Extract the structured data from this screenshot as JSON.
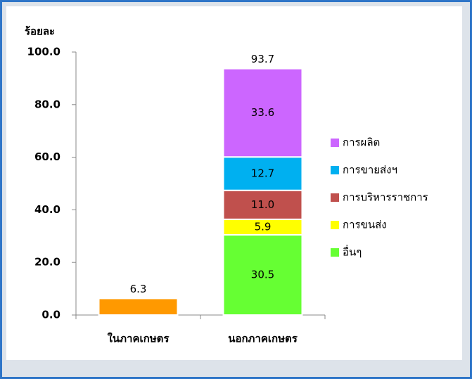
{
  "chart_data": {
    "type": "stacked_bar",
    "y_label": "ร้อยละ",
    "categories": [
      "ในภาคเกษตร",
      "นอกภาคเกษตร"
    ],
    "series": [
      {
        "color": "#ff9900",
        "values": [
          6.3,
          null
        ]
      },
      {
        "name": "อื่นๆ",
        "color": "#66ff33",
        "values": [
          null,
          30.5
        ]
      },
      {
        "name": "การขนส่ง",
        "color": "#ffff00",
        "values": [
          null,
          5.9
        ]
      },
      {
        "name": "การบริหารราชการ",
        "color": "#c0504d",
        "values": [
          null,
          11.0
        ],
        "value_labels": [
          null,
          "11.0"
        ]
      },
      {
        "name": "การขายส่งฯ",
        "color": "#00b0f0",
        "values": [
          null,
          12.7
        ]
      },
      {
        "name": "การผลิต",
        "color": "#cc66ff",
        "values": [
          null,
          33.6
        ]
      }
    ],
    "totals": [
      6.3,
      93.7
    ],
    "ylim": [
      0,
      100
    ],
    "yticks": [
      {
        "value": 0,
        "label": "0.0"
      },
      {
        "value": 20,
        "label": "20.0"
      },
      {
        "value": 40,
        "label": "40.0"
      },
      {
        "value": 60,
        "label": "60.0"
      },
      {
        "value": 80,
        "label": "80.0"
      },
      {
        "value": 100,
        "label": "100.0"
      }
    ],
    "legend": "right"
  }
}
